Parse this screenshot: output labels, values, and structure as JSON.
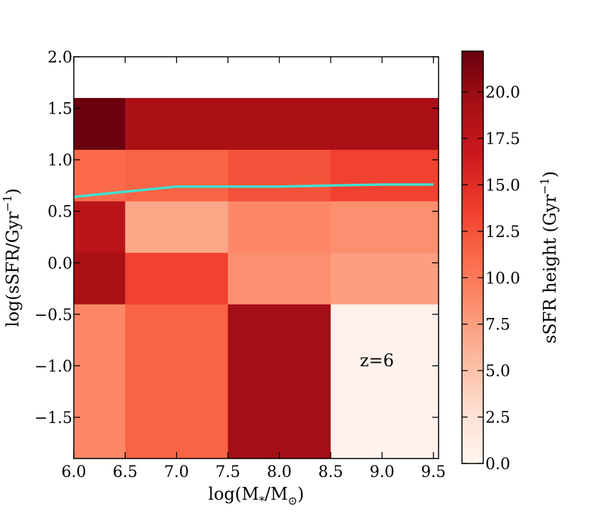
{
  "chart_data": {
    "type": "heatmap",
    "title": "",
    "xlabel": "log(M",
    "xlabel_sub1": "*",
    "xlabel_mid": "/M",
    "xlabel_sub2": "⊙",
    "xlabel_end": ")",
    "ylabel": "log(sSFR/Gyr",
    "ylabel_sup": "−1",
    "ylabel_end": ")",
    "xlim": [
      6.0,
      9.55
    ],
    "ylim": [
      -1.9,
      2.0
    ],
    "xticks": [
      6.0,
      6.5,
      7.0,
      7.5,
      8.0,
      8.5,
      9.0,
      9.5
    ],
    "xtick_labels": [
      "6.0",
      "6.5",
      "7.0",
      "7.5",
      "8.0",
      "8.5",
      "9.0",
      "9.5"
    ],
    "yticks": [
      2.0,
      1.5,
      1.0,
      0.5,
      0.0,
      -0.5,
      -1.0,
      -1.5
    ],
    "ytick_labels": [
      "2.0",
      "1.5",
      "1.0",
      "0.5",
      "0.0",
      "−0.5",
      "−1.0",
      "−1.5"
    ],
    "x_edges": [
      6.0,
      6.5,
      7.5,
      8.5,
      9.55
    ],
    "y_edges": [
      -1.9,
      -0.4,
      0.1,
      0.6,
      1.1,
      1.6
    ],
    "z": [
      [
        9.0,
        11.5,
        19.5,
        0.5
      ],
      [
        19.0,
        13.5,
        8.5,
        7.5
      ],
      [
        18.0,
        7.0,
        9.0,
        8.5
      ],
      [
        11.0,
        11.5,
        12.5,
        13.5
      ],
      [
        22.0,
        19.0,
        19.0,
        19.0
      ]
    ],
    "line": {
      "color": "#40e0d0",
      "x": [
        6.0,
        7.0,
        7.5,
        8.0,
        9.0,
        9.5
      ],
      "y": [
        0.64,
        0.74,
        0.74,
        0.74,
        0.76,
        0.76
      ]
    },
    "annotation": {
      "text": "z=6",
      "x": 8.95,
      "y": -0.95
    },
    "colorbar": {
      "label": "sSFR height (Gyr",
      "label_sup": "−1",
      "label_end": ")",
      "vmin": 0.0,
      "vmax": 22.2,
      "ticks": [
        0.0,
        2.5,
        5.0,
        7.5,
        10.0,
        12.5,
        15.0,
        17.5,
        20.0
      ],
      "tick_labels": [
        "0.0",
        "2.5",
        "5.0",
        "7.5",
        "10.0",
        "12.5",
        "15.0",
        "17.5",
        "20.0"
      ],
      "colormap": "Reds"
    }
  }
}
